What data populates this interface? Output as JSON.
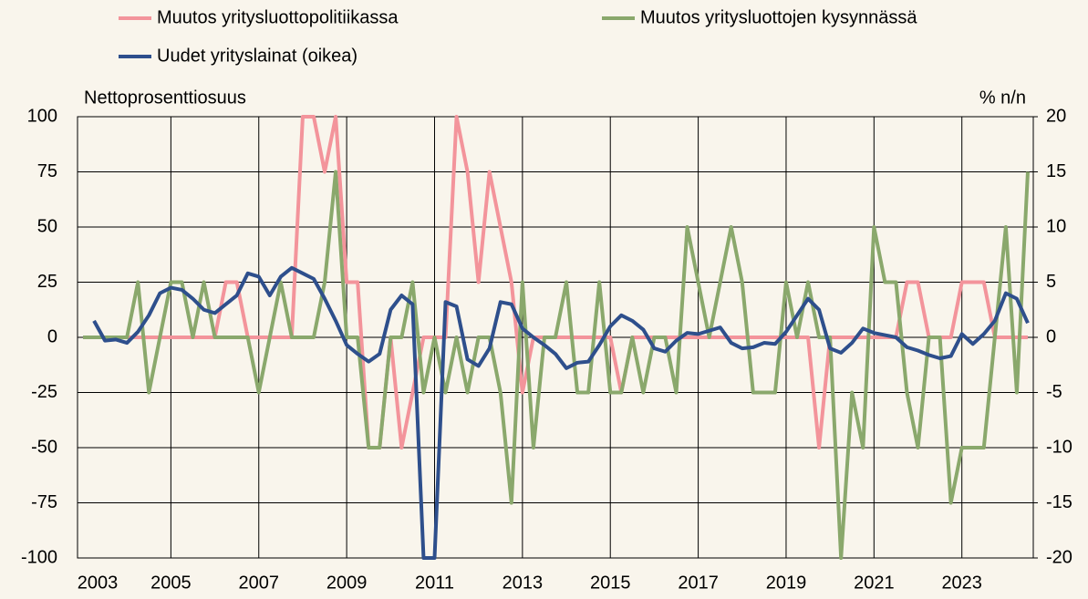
{
  "chart_data": {
    "type": "line",
    "categories": [
      "2003",
      null,
      null,
      null,
      null,
      null,
      null,
      null,
      "2005",
      null,
      null,
      null,
      null,
      null,
      null,
      null,
      "2007",
      null,
      null,
      null,
      null,
      null,
      null,
      null,
      "2009",
      null,
      null,
      null,
      null,
      null,
      null,
      null,
      "2011",
      null,
      null,
      null,
      null,
      null,
      null,
      null,
      "2013",
      null,
      null,
      null,
      null,
      null,
      null,
      null,
      "2015",
      null,
      null,
      null,
      null,
      null,
      null,
      null,
      "2017",
      null,
      null,
      null,
      null,
      null,
      null,
      null,
      "2019",
      null,
      null,
      null,
      null,
      null,
      null,
      null,
      "2021",
      null,
      null,
      null,
      null,
      null,
      null,
      null,
      "2023",
      null,
      null,
      null,
      null,
      null,
      null
    ],
    "series": [
      {
        "name": "Muutos yritysluottopolitiikassa",
        "color": "#f3949b",
        "values": [
          0,
          0,
          0,
          0,
          0,
          0,
          0,
          0,
          0,
          0,
          0,
          0,
          0,
          25,
          25,
          0,
          0,
          0,
          0,
          0,
          100,
          100,
          75,
          100,
          25,
          25,
          -50,
          -50,
          0,
          -50,
          -25,
          0,
          0,
          0,
          100,
          75,
          25,
          75,
          50,
          25,
          -25,
          0,
          0,
          0,
          0,
          0,
          0,
          0,
          0,
          -25,
          0,
          0,
          0,
          0,
          0,
          0,
          0,
          0,
          0,
          0,
          0,
          0,
          0,
          0,
          0,
          0,
          0,
          -50,
          0,
          0,
          0,
          0,
          0,
          0,
          0,
          25,
          25,
          0,
          0,
          0,
          25,
          25,
          25,
          0,
          0,
          0,
          0
        ]
      },
      {
        "name": "Muutos yritysluottojen kysynnässä",
        "color": "#8aa86c",
        "values": [
          0,
          0,
          0,
          0,
          0,
          25,
          -25,
          0,
          25,
          25,
          0,
          25,
          0,
          0,
          0,
          0,
          -25,
          0,
          25,
          0,
          0,
          0,
          25,
          75,
          0,
          0,
          -50,
          -50,
          0,
          0,
          25,
          -25,
          0,
          -25,
          0,
          -25,
          0,
          0,
          -25,
          -75,
          25,
          -50,
          0,
          0,
          25,
          -25,
          -25,
          25,
          -25,
          -25,
          0,
          -25,
          0,
          0,
          -25,
          50,
          25,
          0,
          25,
          50,
          25,
          -25,
          -25,
          -25,
          25,
          0,
          25,
          0,
          0,
          -100,
          -25,
          -50,
          50,
          25,
          25,
          -25,
          -50,
          0,
          0,
          -75,
          -50,
          -50,
          -50,
          0,
          50,
          -25,
          75
        ]
      },
      {
        "name": "Uudet yrityslainat (oikea)",
        "color": "#2e4f8c",
        "axis": "y2",
        "values": [
          null,
          1.5,
          -0.3,
          -0.2,
          -0.5,
          0.5,
          2,
          4,
          4.5,
          4.3,
          3.5,
          2.5,
          2.2,
          3,
          3.8,
          5.8,
          5.5,
          3.8,
          5.5,
          6.3,
          5.8,
          5.3,
          3.5,
          1.5,
          -0.7,
          -1.5,
          -2.2,
          -1.5,
          2.5,
          3.8,
          3,
          -20,
          -20,
          3.2,
          2.8,
          -2,
          -2.6,
          -1,
          3.2,
          3,
          0.8,
          0,
          -0.7,
          -1.5,
          -2.8,
          -2.3,
          -2.2,
          -0.7,
          1,
          2,
          1.5,
          0.7,
          -1,
          -1.3,
          -0.3,
          0.4,
          0.3,
          0.6,
          0.9,
          -0.5,
          -1,
          -0.9,
          -0.5,
          -0.6,
          0.5,
          2,
          3.5,
          2.5,
          -1,
          -1.4,
          -0.5,
          0.8,
          0.4,
          0.2,
          0,
          -0.9,
          -1.2,
          -1.6,
          -1.9,
          -1.7,
          0.3,
          -0.6,
          0.3,
          1.5,
          4,
          3.5,
          1.3
        ]
      }
    ],
    "ylabel": "Nettoprosenttiosuus",
    "y2label": "% n/n",
    "ylim": [
      -100,
      100
    ],
    "yticks": [
      -100,
      -75,
      -50,
      -25,
      0,
      25,
      50,
      75,
      100
    ],
    "y2lim": [
      -20,
      20
    ],
    "y2ticks": [
      -20,
      -15,
      -10,
      -5,
      0,
      5,
      10,
      15,
      20
    ],
    "grid": true,
    "legend": "top"
  }
}
